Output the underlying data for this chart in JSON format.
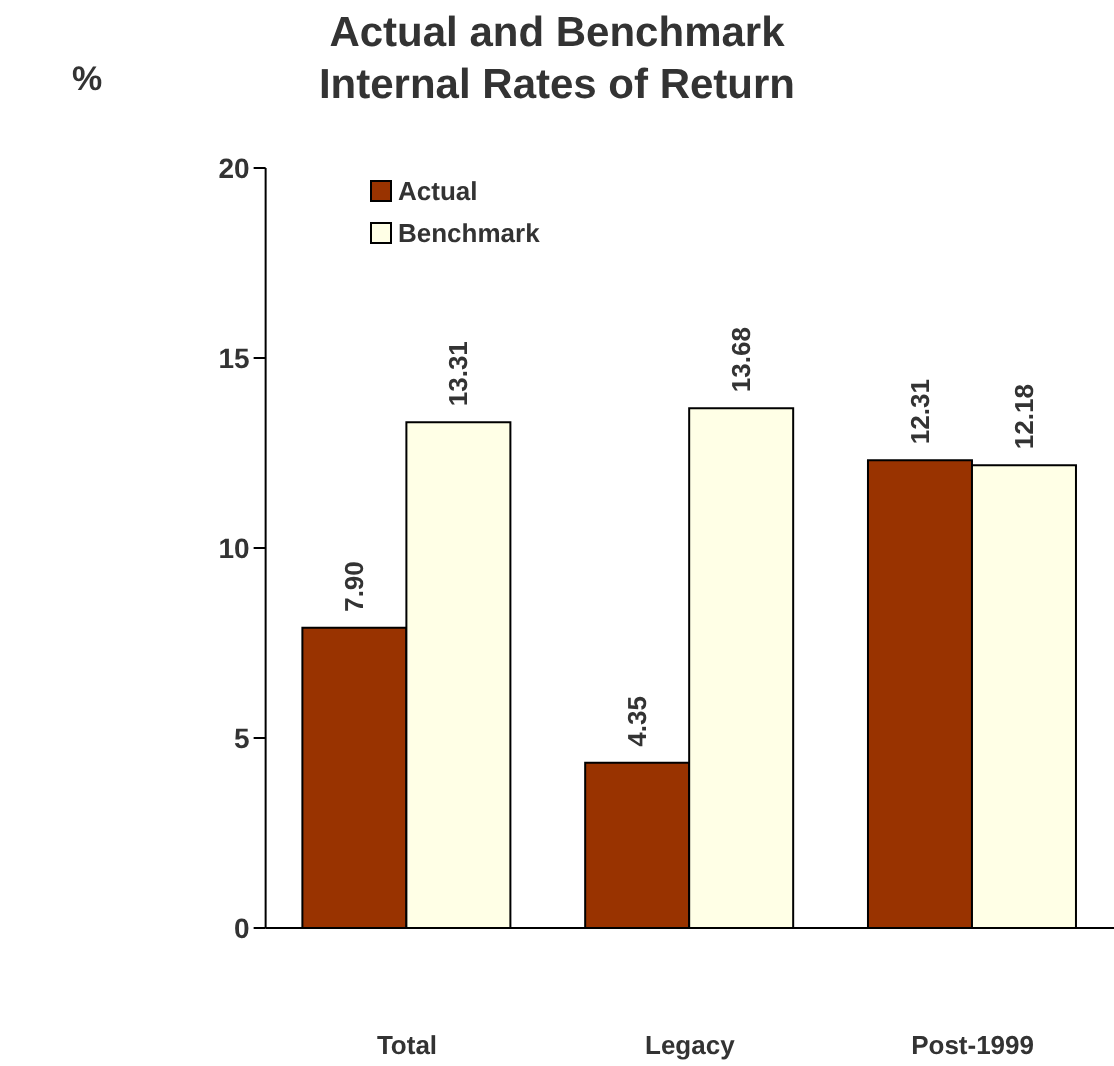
{
  "chart_data": {
    "type": "bar",
    "title": "Actual and Benchmark\nInternal Rates of Return",
    "ylabel": "%",
    "categories": [
      "Total",
      "Legacy",
      "Post-1999"
    ],
    "series": [
      {
        "name": "Actual",
        "color": "#993300",
        "values": [
          7.9,
          4.35,
          12.31
        ],
        "value_labels": [
          "7.90",
          "4.35",
          "12.31"
        ]
      },
      {
        "name": "Benchmark",
        "color": "#ffffe6",
        "values": [
          13.31,
          13.68,
          12.18
        ],
        "value_labels": [
          "13.31",
          "13.68",
          "12.18"
        ]
      }
    ],
    "ylim": [
      0,
      20
    ],
    "yticks": [
      0,
      5,
      10,
      15,
      20
    ],
    "grid": false,
    "legend": "top left"
  }
}
